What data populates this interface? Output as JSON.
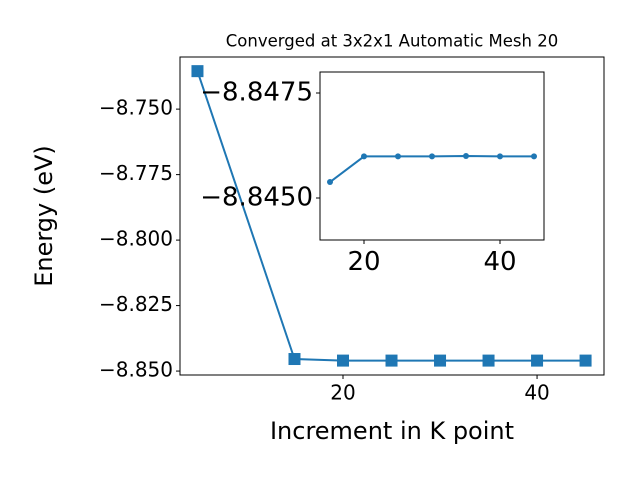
{
  "chart_data": [
    {
      "type": "line",
      "title": "Converged at 3x2x1 Automatic Mesh 20",
      "xlabel": "Increment in K point",
      "ylabel": "Energy (eV)",
      "x": [
        5,
        15,
        20,
        25,
        30,
        35,
        40,
        45
      ],
      "series": [
        {
          "name": "Energy",
          "color": "#1f77b4",
          "marker": "square",
          "values": [
            -8.7355,
            -8.8454,
            -8.846,
            -8.846,
            -8.846,
            -8.846,
            -8.846,
            -8.846
          ]
        }
      ],
      "xlim": [
        3.2,
        46.9
      ],
      "xticks": [
        20,
        40
      ],
      "ylim": [
        -8.8515,
        -8.7301
      ],
      "yticks": [
        {
          "value": -8.85,
          "label": "−8.850"
        },
        {
          "value": -8.825,
          "label": "−8.825"
        },
        {
          "value": -8.8,
          "label": "−8.800"
        },
        {
          "value": -8.775,
          "label": "−8.775"
        },
        {
          "value": -8.75,
          "label": "−8.750"
        }
      ]
    },
    {
      "type": "line",
      "x": [
        15,
        20,
        25,
        30,
        35,
        40,
        45
      ],
      "series": [
        {
          "name": "Energy",
          "color": "#1f77b4",
          "marker": "circle",
          "values": [
            -8.84538,
            -8.84599,
            -8.84599,
            -8.84599,
            -8.846,
            -8.84599,
            -8.84599
          ]
        }
      ],
      "xlim": [
        13.53,
        46.47
      ],
      "xticks": [
        20,
        40
      ],
      "ylim": [
        -8.844,
        -8.848
      ],
      "yticks": [
        {
          "value": -8.845,
          "label": "−8.8450"
        },
        {
          "value": -8.8475,
          "label": "−8.8475"
        }
      ]
    }
  ]
}
